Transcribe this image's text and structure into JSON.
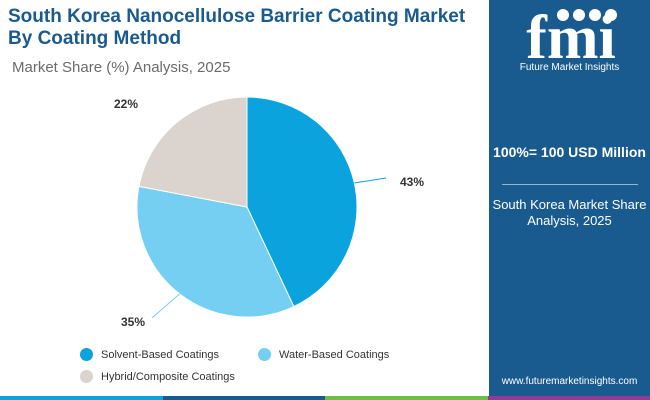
{
  "header": {
    "title": "South Korea Nanocellulose Barrier Coating Market By Coating Method",
    "subtitle": "Market Share (%) Analysis, 2025"
  },
  "chart_data": {
    "type": "pie",
    "categories": [
      "Solvent-Based Coatings",
      "Water-Based Coatings",
      "Hybrid/Composite Coatings"
    ],
    "values": [
      43,
      35,
      22
    ],
    "data_labels": [
      "43%",
      "35%",
      "22%"
    ],
    "colors": [
      "#0aa3dd",
      "#74cff2",
      "#dbd3cd"
    ],
    "legend_position": "bottom"
  },
  "panel": {
    "logo_word": "fmi",
    "logo_caption": "Future Market Insights",
    "total": "100%= 100 USD Million",
    "description": "South Korea Market Share Analysis, 2025",
    "website": "www.futuremarketinsights.com"
  },
  "colors": {
    "brand": "#1a5b8f",
    "bottom_bar": [
      "#0aa3dd",
      "#1a5b8f",
      "#6fbe44",
      "#8e3d97"
    ]
  }
}
